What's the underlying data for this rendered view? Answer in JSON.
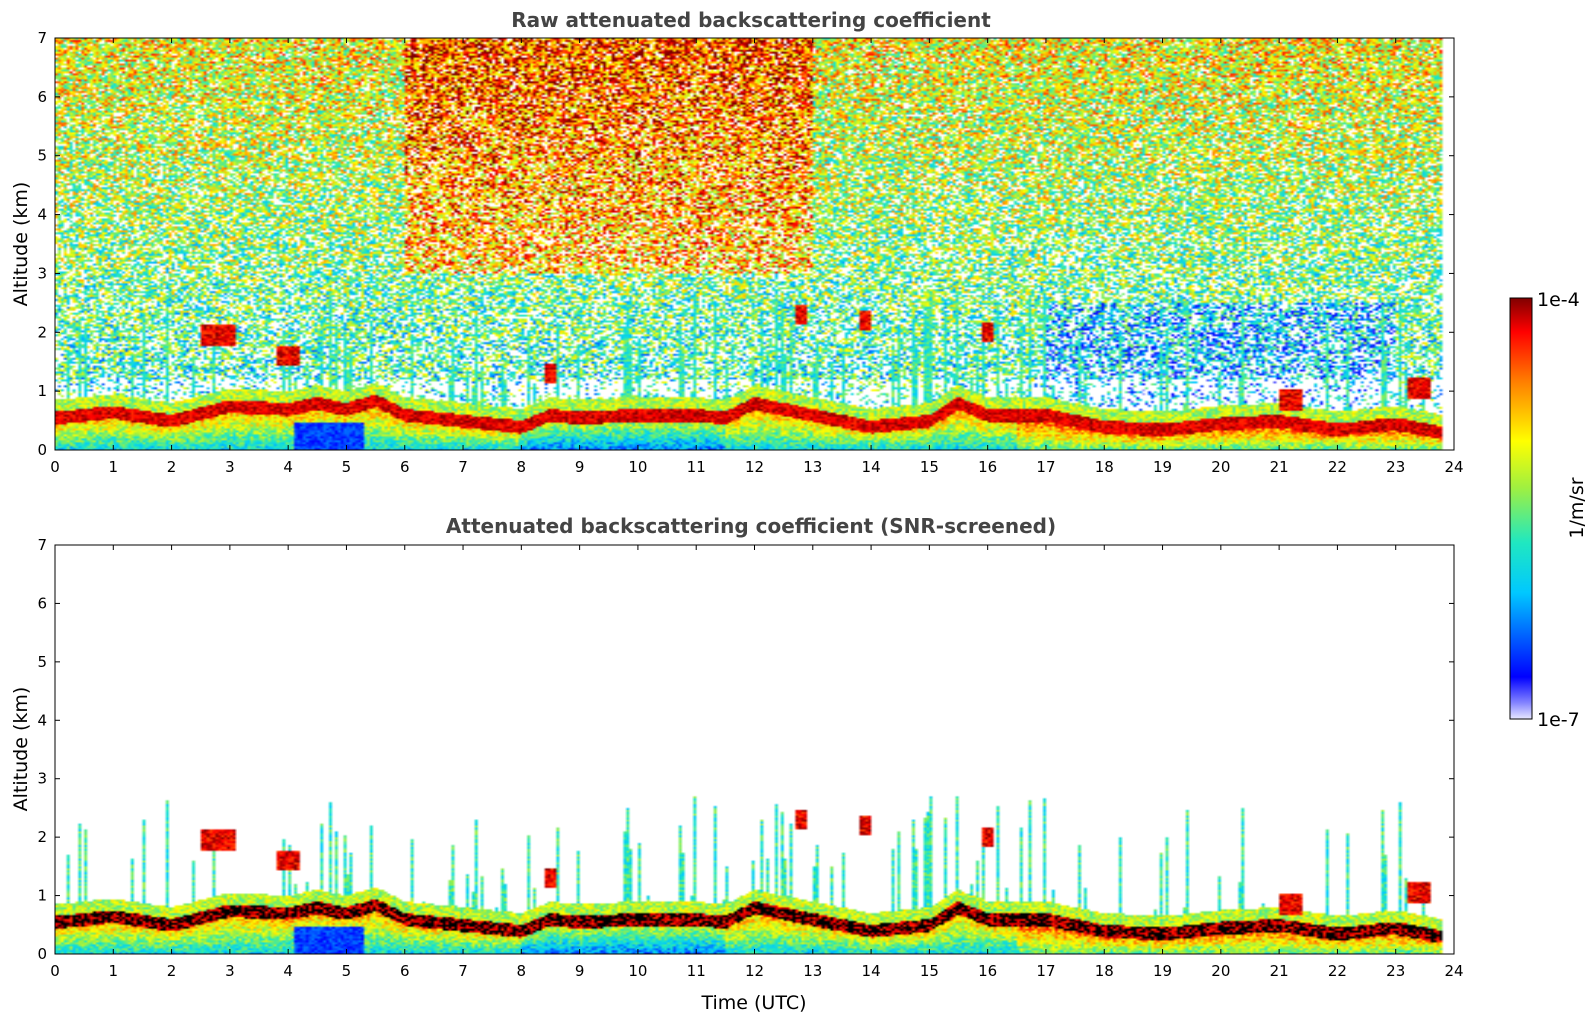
{
  "chart_data": [
    {
      "type": "heatmap",
      "title": "Raw attenuated backscattering coefficient",
      "xlabel": "",
      "ylabel": "Altitude (km)",
      "xlim": [
        0,
        24
      ],
      "ylim": [
        0,
        7
      ],
      "xticks": [
        "0",
        "1",
        "2",
        "3",
        "4",
        "5",
        "6",
        "7",
        "8",
        "9",
        "10",
        "11",
        "12",
        "13",
        "14",
        "15",
        "16",
        "17",
        "18",
        "19",
        "20",
        "21",
        "22",
        "23",
        "24"
      ],
      "yticks": [
        "0",
        "1",
        "2",
        "3",
        "4",
        "5",
        "6",
        "7"
      ],
      "noise_field": true,
      "boundary_layer_top_km": [
        [
          0,
          0.55
        ],
        [
          1,
          0.65
        ],
        [
          2,
          0.5
        ],
        [
          3,
          0.75
        ],
        [
          4,
          0.7
        ],
        [
          4.5,
          0.8
        ],
        [
          5,
          0.7
        ],
        [
          5.5,
          0.85
        ],
        [
          6,
          0.6
        ],
        [
          7,
          0.5
        ],
        [
          8,
          0.4
        ],
        [
          8.5,
          0.6
        ],
        [
          9,
          0.55
        ],
        [
          10,
          0.6
        ],
        [
          11,
          0.6
        ],
        [
          11.5,
          0.55
        ],
        [
          12,
          0.8
        ],
        [
          13,
          0.6
        ],
        [
          14,
          0.4
        ],
        [
          15,
          0.5
        ],
        [
          15.5,
          0.8
        ],
        [
          16,
          0.6
        ],
        [
          17,
          0.6
        ],
        [
          18,
          0.4
        ],
        [
          19,
          0.35
        ],
        [
          20,
          0.45
        ],
        [
          21,
          0.5
        ],
        [
          22,
          0.35
        ],
        [
          23,
          0.45
        ],
        [
          23.8,
          0.3
        ]
      ],
      "cloud_features": [
        {
          "t": 2.8,
          "alt": 1.95,
          "width": 0.6
        },
        {
          "t": 4.0,
          "alt": 1.6,
          "width": 0.4
        },
        {
          "t": 8.5,
          "alt": 1.3,
          "width": 0.2
        },
        {
          "t": 12.8,
          "alt": 2.3,
          "width": 0.25
        },
        {
          "t": 13.9,
          "alt": 2.2,
          "width": 0.2
        },
        {
          "t": 16.0,
          "alt": 2.0,
          "width": 0.2
        },
        {
          "t": 21.2,
          "alt": 0.85,
          "width": 0.4
        },
        {
          "t": 23.4,
          "alt": 1.05,
          "width": 0.4
        }
      ]
    },
    {
      "type": "heatmap",
      "title": "Attenuated backscattering coefficient (SNR-screened)",
      "xlabel": "Time (UTC)",
      "ylabel": "Altitude (km)",
      "xlim": [
        0,
        24
      ],
      "ylim": [
        0,
        7
      ],
      "xticks": [
        "0",
        "1",
        "2",
        "3",
        "4",
        "5",
        "6",
        "7",
        "8",
        "9",
        "10",
        "11",
        "12",
        "13",
        "14",
        "15",
        "16",
        "17",
        "18",
        "19",
        "20",
        "21",
        "22",
        "23",
        "24"
      ],
      "yticks": [
        "0",
        "1",
        "2",
        "3",
        "4",
        "5",
        "6",
        "7"
      ],
      "noise_field": false
    }
  ],
  "colorbar": {
    "max_label": "1e-4",
    "min_label": "1e-7",
    "unit_label": "1/m/sr",
    "colormap": "jet"
  }
}
